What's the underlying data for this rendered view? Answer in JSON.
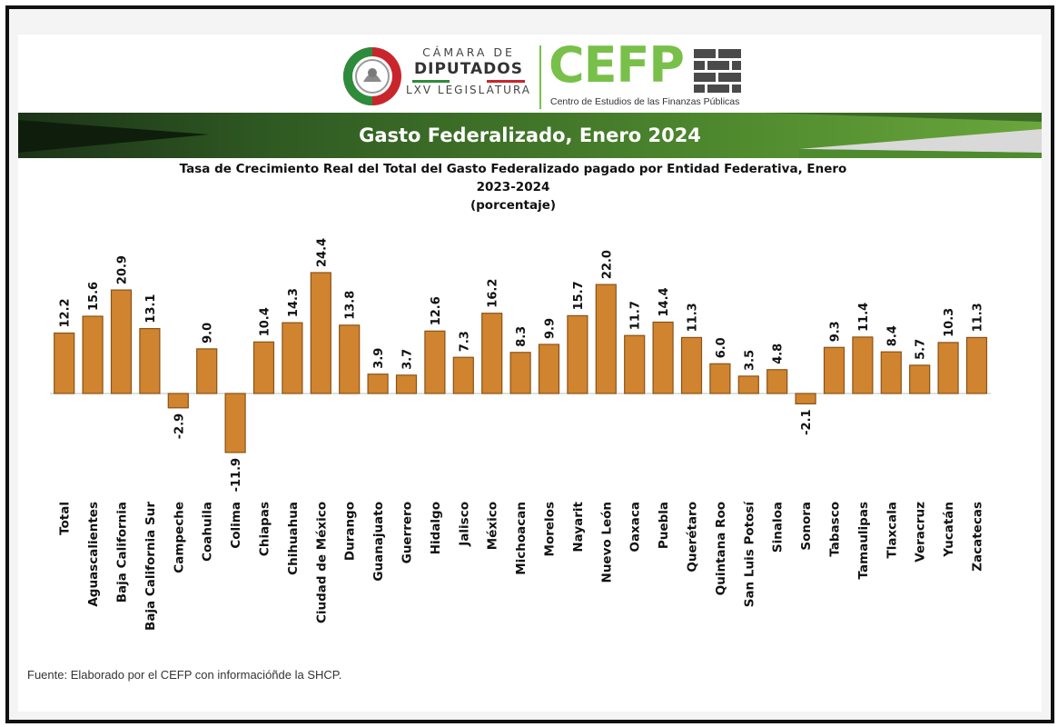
{
  "header": {
    "camara_line1": "CÁMARA DE",
    "camara_line2": "DIPUTADOS",
    "camara_line3": "LXV LEGISLATURA",
    "cefp_logo": "CEFP",
    "cefp_subtitle": "Centro de Estudios de las Finanzas Públicas",
    "banner_title": "Gasto Federalizado, Enero 2024"
  },
  "colors": {
    "bar_fill": "#d0842f",
    "bar_stroke": "#8a5216",
    "banner_dark": "#1f3f1a",
    "banner_green": "#5f9a36",
    "cefp_green": "#79c04a"
  },
  "chart_data": {
    "type": "bar",
    "title_line1": "Tasa de Crecimiento Real del Total del Gasto Federalizado pagado por Entidad Federativa, Enero",
    "title_line2": "2023-2024",
    "title_line3": "(porcentaje)",
    "categories": [
      "Total",
      "Aguascalientes",
      "Baja California",
      "Baja California Sur",
      "Campeche",
      "Coahuila",
      "Colima",
      "Chiapas",
      "Chihuahua",
      "Ciudad de México",
      "Durango",
      "Guanajuato",
      "Guerrero",
      "Hidalgo",
      "Jalisco",
      "México",
      "Michoacan",
      "Morelos",
      "Nayarit",
      "Nuevo León",
      "Oaxaca",
      "Puebla",
      "Querétaro",
      "Quintana Roo",
      "San Luis Potosí",
      "Sinaloa",
      "Sonora",
      "Tabasco",
      "Tamaulipas",
      "Tlaxcala",
      "Veracruz",
      "Yucatán",
      "Zacatecas"
    ],
    "values": [
      12.2,
      15.6,
      20.9,
      13.1,
      -2.9,
      9.0,
      -11.9,
      10.4,
      14.3,
      24.4,
      13.8,
      3.9,
      3.7,
      12.6,
      7.3,
      16.2,
      8.3,
      9.9,
      15.7,
      22.0,
      11.7,
      14.4,
      11.3,
      6.0,
      3.5,
      4.8,
      -2.1,
      9.3,
      11.4,
      8.4,
      5.7,
      10.3,
      11.3
    ],
    "value_labels": [
      "12.2",
      "15.6",
      "20.9",
      "13.1",
      "-2.9",
      "9.0",
      "-11.9",
      "10.4",
      "14.3",
      "24.4",
      "13.8",
      "3.9",
      "3.7",
      "12.6",
      "7.3",
      "16.2",
      "8.3",
      "9.9",
      "15.7",
      "22.0",
      "11.7",
      "14.4",
      "11.3",
      "6.0",
      "3.5",
      "4.8",
      "-2.1",
      "9.3",
      "11.4",
      "8.4",
      "5.7",
      "10.3",
      "11.3"
    ],
    "ylim": [
      -12,
      25
    ],
    "grid": false,
    "legend": "none"
  },
  "footer": {
    "source": "Fuente: Elaborado por el CEFP con informacióñde la SHCP."
  }
}
